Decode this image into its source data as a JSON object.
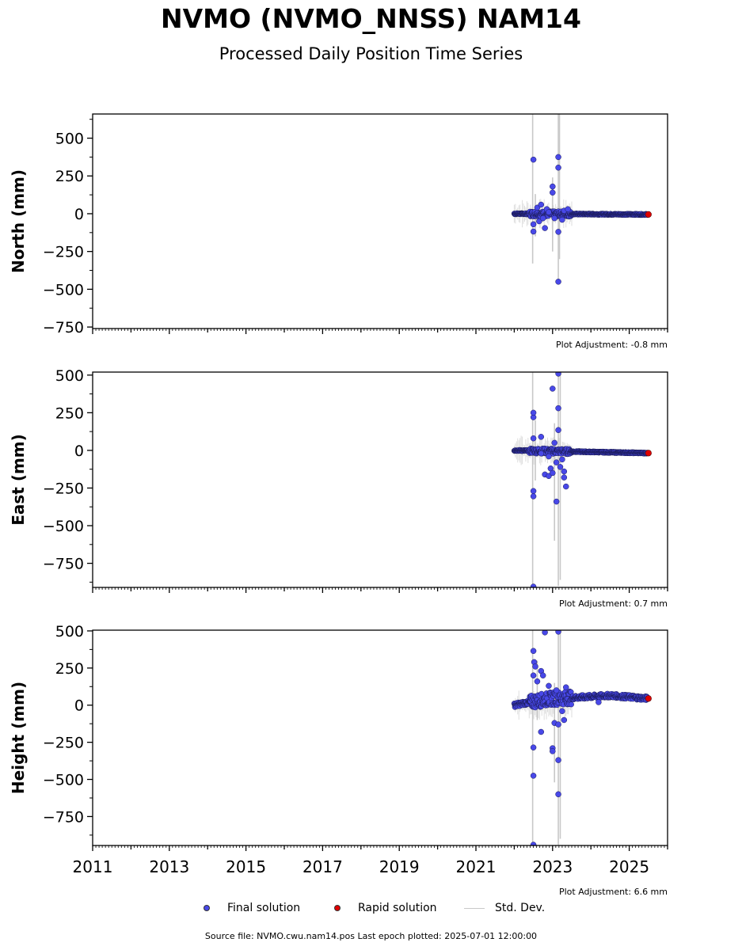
{
  "title": "NVMO (NVMO_NNSS) NAM14",
  "subtitle": "Processed Daily Position Time Series",
  "footer": "Source file: NVMO.cwu.nam14.pos  Last epoch plotted: 2025-07-01 12:00:00",
  "legend": {
    "final": "Final solution",
    "rapid": "Rapid solution",
    "stddev": "Std. Dev."
  },
  "colors": {
    "final": "#4848e8",
    "rapid": "#e00000",
    "stddev": "#c8c8c8"
  },
  "chart_data": [
    {
      "type": "scatter",
      "ylabel": "North (mm)",
      "xlim": [
        2011,
        2026
      ],
      "ylim": [
        -760,
        660
      ],
      "yticks": [
        500,
        250,
        0,
        -250,
        -500,
        -750
      ],
      "yticks_labels": [
        "500",
        "250",
        "0",
        "−250",
        "−500",
        "−750"
      ],
      "xticks_labels": [],
      "adjustment": "Plot Adjustment: -0.8 mm",
      "trend": [
        [
          2022.0,
          0
        ],
        [
          2025.5,
          -5
        ]
      ],
      "scatter": [
        [
          2022.5,
          358
        ],
        [
          2022.5,
          -118
        ],
        [
          2022.5,
          -70
        ],
        [
          2022.6,
          40
        ],
        [
          2022.65,
          -50
        ],
        [
          2022.7,
          60
        ],
        [
          2022.75,
          -30
        ],
        [
          2022.8,
          -95
        ],
        [
          2022.85,
          30
        ],
        [
          2022.9,
          10
        ],
        [
          2023.0,
          180
        ],
        [
          2023.0,
          140
        ],
        [
          2023.05,
          -30
        ],
        [
          2023.15,
          375
        ],
        [
          2023.15,
          305
        ],
        [
          2023.15,
          -120
        ],
        [
          2023.15,
          -450
        ],
        [
          2023.25,
          -40
        ],
        [
          2023.3,
          20
        ],
        [
          2023.4,
          30
        ]
      ],
      "stddev": [
        [
          2022.48,
          -330,
          660
        ],
        [
          2022.55,
          -150,
          130
        ],
        [
          2023.0,
          -250,
          240
        ],
        [
          2023.15,
          -460,
          660
        ],
        [
          2023.18,
          -300,
          660
        ]
      ],
      "rapid": [
        2025.5,
        -5
      ]
    },
    {
      "type": "scatter",
      "ylabel": "East (mm)",
      "xlim": [
        2011,
        2026
      ],
      "ylim": [
        -910,
        520
      ],
      "yticks": [
        500,
        250,
        0,
        -250,
        -500,
        -750
      ],
      "yticks_labels": [
        "500",
        "250",
        "0",
        "−250",
        "−500",
        "−750"
      ],
      "xticks_labels": [],
      "adjustment": "Plot Adjustment: 0.7 mm",
      "trend": [
        [
          2022.0,
          0
        ],
        [
          2025.5,
          -18
        ]
      ],
      "scatter": [
        [
          2022.5,
          220
        ],
        [
          2022.5,
          250
        ],
        [
          2022.5,
          80
        ],
        [
          2022.5,
          -270
        ],
        [
          2022.5,
          -305
        ],
        [
          2022.5,
          -905
        ],
        [
          2022.7,
          90
        ],
        [
          2022.8,
          -160
        ],
        [
          2022.9,
          -170
        ],
        [
          2022.95,
          -120
        ],
        [
          2023.0,
          410
        ],
        [
          2023.0,
          -150
        ],
        [
          2023.05,
          50
        ],
        [
          2023.1,
          -340
        ],
        [
          2023.15,
          510
        ],
        [
          2023.15,
          280
        ],
        [
          2023.15,
          135
        ],
        [
          2023.2,
          -110
        ],
        [
          2023.3,
          -180
        ],
        [
          2023.35,
          -240
        ],
        [
          2023.3,
          -140
        ],
        [
          2023.25,
          -60
        ],
        [
          2022.9,
          -40
        ],
        [
          2022.7,
          -20
        ],
        [
          2023.1,
          -80
        ]
      ],
      "stddev": [
        [
          2022.48,
          -900,
          520
        ],
        [
          2022.55,
          -200,
          200
        ],
        [
          2023.05,
          -600,
          180
        ],
        [
          2023.15,
          -900,
          520
        ],
        [
          2023.2,
          -860,
          520
        ]
      ],
      "rapid": [
        2025.5,
        -18
      ]
    },
    {
      "type": "scatter",
      "ylabel": "Height (mm)",
      "xlim": [
        2011,
        2026
      ],
      "ylim": [
        -945,
        505
      ],
      "yticks": [
        500,
        250,
        0,
        -250,
        -500,
        -750
      ],
      "yticks_labels": [
        "500",
        "250",
        "0",
        "−250",
        "−500",
        "−750"
      ],
      "xticks": [
        2011,
        2013,
        2015,
        2017,
        2019,
        2021,
        2023,
        2025
      ],
      "xticks_labels": [
        "2011",
        "2013",
        "2015",
        "2017",
        "2019",
        "2021",
        "2023",
        "2025"
      ],
      "adjustment": "Plot Adjustment: 6.6 mm",
      "trend": [
        [
          2022.0,
          0
        ],
        [
          2022.5,
          25
        ],
        [
          2023.0,
          45
        ],
        [
          2023.5,
          50
        ],
        [
          2024.5,
          65
        ],
        [
          2025.5,
          45
        ]
      ],
      "scatter": [
        [
          2022.5,
          365
        ],
        [
          2022.52,
          290
        ],
        [
          2022.55,
          260
        ],
        [
          2022.5,
          200
        ],
        [
          2022.6,
          160
        ],
        [
          2022.5,
          -285
        ],
        [
          2022.5,
          -475
        ],
        [
          2022.5,
          -940
        ],
        [
          2022.7,
          230
        ],
        [
          2022.75,
          200
        ],
        [
          2022.8,
          490
        ],
        [
          2022.7,
          -180
        ],
        [
          2023.0,
          -290
        ],
        [
          2023.0,
          -310
        ],
        [
          2023.05,
          -120
        ],
        [
          2023.15,
          495
        ],
        [
          2023.15,
          -130
        ],
        [
          2023.15,
          -370
        ],
        [
          2023.15,
          -600
        ],
        [
          2023.3,
          -100
        ],
        [
          2023.35,
          120
        ],
        [
          2023.25,
          -40
        ],
        [
          2022.9,
          130
        ],
        [
          2023.1,
          100
        ],
        [
          2024.2,
          20
        ]
      ],
      "stddev": [
        [
          2022.48,
          -940,
          505
        ],
        [
          2022.6,
          -100,
          300
        ],
        [
          2023.05,
          -520,
          150
        ],
        [
          2023.15,
          -940,
          505
        ],
        [
          2023.2,
          -900,
          505
        ]
      ],
      "rapid": [
        2025.5,
        45
      ]
    }
  ]
}
